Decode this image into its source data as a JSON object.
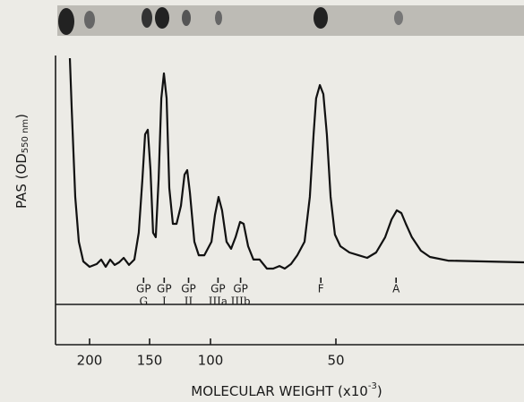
{
  "chart_data": {
    "type": "line",
    "y_label": [
      "PAS (OD",
      "550 nm",
      ")"
    ],
    "x_label": [
      "MOLECULAR WEIGHT (x10",
      "-3",
      ")"
    ],
    "color": "#111111",
    "xlim": [
      230,
      0
    ],
    "xticks": [
      200,
      150,
      100,
      50
    ],
    "ylim": [
      0,
      100
    ],
    "x": [
      217.4,
      215.8,
      212.6,
      209.5,
      205.5,
      200,
      194.0,
      190.3,
      186.6,
      182.8,
      179.1,
      175.4,
      171.6,
      167.2,
      162.7,
      159.0,
      156.0,
      153.7,
      151.5,
      149.3,
      147.1,
      144.9,
      142.6,
      140.4,
      138.2,
      136.0,
      133.8,
      130.9,
      127.9,
      124.3,
      121.3,
      119.1,
      116.9,
      113.2,
      109.6,
      105.1,
      99.6,
      98.2,
      96.8,
      95.4,
      93.6,
      91.8,
      90.0,
      88.2,
      86.8,
      85.0,
      82.9,
      80.4,
      77.5,
      75.0,
      72.5,
      70.4,
      67.9,
      65.4,
      62.5,
      60.4,
      58.9,
      57.9,
      56.4,
      55.0,
      53.6,
      52.1,
      50.4,
      48.8,
      46.4,
      44.0,
      41.7,
      39.3,
      36.9,
      35.2,
      33.8,
      32.6,
      31.4,
      29.8,
      27.4,
      25.0,
      20.2,
      10.7,
      0
    ],
    "values": [
      100,
      77.1,
      35.4,
      14.6,
      5.4,
      2.9,
      4.2,
      6.3,
      2.9,
      6.3,
      3.8,
      5,
      7.1,
      3.8,
      6.3,
      18.8,
      43.8,
      64.6,
      66.7,
      47.9,
      18.8,
      16.7,
      43.8,
      81.3,
      92.9,
      81.3,
      39.6,
      22.9,
      22.9,
      31.3,
      45.8,
      47.9,
      37.5,
      14.6,
      8.3,
      8.3,
      14.6,
      27.1,
      35.4,
      29.2,
      14.6,
      11.3,
      16.7,
      23.8,
      22.9,
      12.5,
      6.3,
      6.3,
      2.1,
      2.1,
      3.3,
      2.1,
      4.2,
      8.3,
      14.6,
      35.4,
      64.6,
      81.3,
      87.5,
      83.3,
      64.6,
      35.4,
      17.9,
      12.5,
      9.6,
      8.3,
      7.1,
      9.6,
      16.7,
      25,
      29.2,
      27.9,
      22.9,
      16.7,
      10.4,
      7.5,
      5.8,
      5.4,
      5
    ],
    "annotations": [
      {
        "label": "GP",
        "sublabel": "G",
        "x": 155
      },
      {
        "label": "GP",
        "sublabel": "I",
        "x": 138
      },
      {
        "label": "GP",
        "sublabel": "II",
        "x": 118
      },
      {
        "label": "GP",
        "sublabel": "IIIa",
        "x": 97
      },
      {
        "label": "GP",
        "sublabel": "IIIb",
        "x": 88
      },
      {
        "label": "F",
        "x": 56
      },
      {
        "label": "A",
        "x": 34
      }
    ]
  }
}
